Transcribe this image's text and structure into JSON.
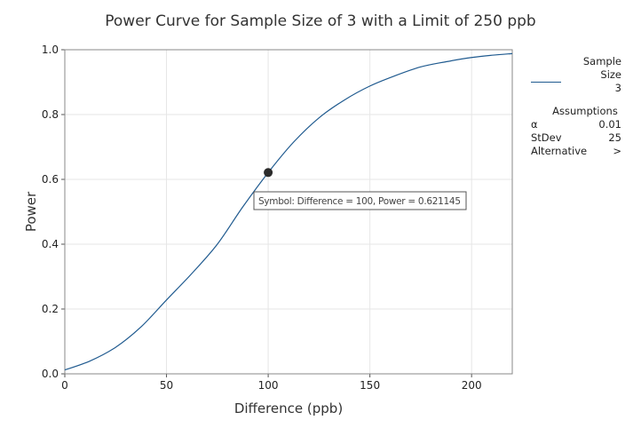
{
  "chart_data": {
    "type": "line",
    "title": "Power Curve for Sample Size of 3 with a Limit of 250 ppb",
    "xlabel": "Difference (ppb)",
    "ylabel": "Power",
    "xlim": [
      0,
      220
    ],
    "ylim": [
      0,
      1.0
    ],
    "xticks": [
      "0",
      "50",
      "100",
      "150",
      "200"
    ],
    "yticks": [
      "0.0",
      "0.2",
      "0.4",
      "0.6",
      "0.8",
      "1.0"
    ],
    "grid": true,
    "series": [
      {
        "name": "3",
        "color": "#1f5a8f",
        "x": [
          0,
          12.5,
          25,
          37.5,
          50,
          62.5,
          75,
          87.5,
          100,
          112.5,
          125,
          137.5,
          150,
          162.5,
          175,
          187.5,
          200,
          210,
          220
        ],
        "y": [
          0.012,
          0.04,
          0.082,
          0.145,
          0.228,
          0.31,
          0.4,
          0.515,
          0.621,
          0.715,
          0.79,
          0.845,
          0.888,
          0.92,
          0.947,
          0.963,
          0.976,
          0.983,
          0.988
        ]
      }
    ],
    "marker": {
      "x": 100,
      "y": 0.621145,
      "label": "Symbol:  Difference = 100, Power = 0.621145"
    },
    "legend": {
      "placement": "right",
      "title_line1": "Sample",
      "title_line2": "Size",
      "entry": "3",
      "assumptions_title": "Assumptions",
      "assumptions": [
        {
          "label": "α",
          "value": "0.01"
        },
        {
          "label": "StDev",
          "value": "25"
        },
        {
          "label": "Alternative",
          "value": ">"
        }
      ]
    }
  }
}
